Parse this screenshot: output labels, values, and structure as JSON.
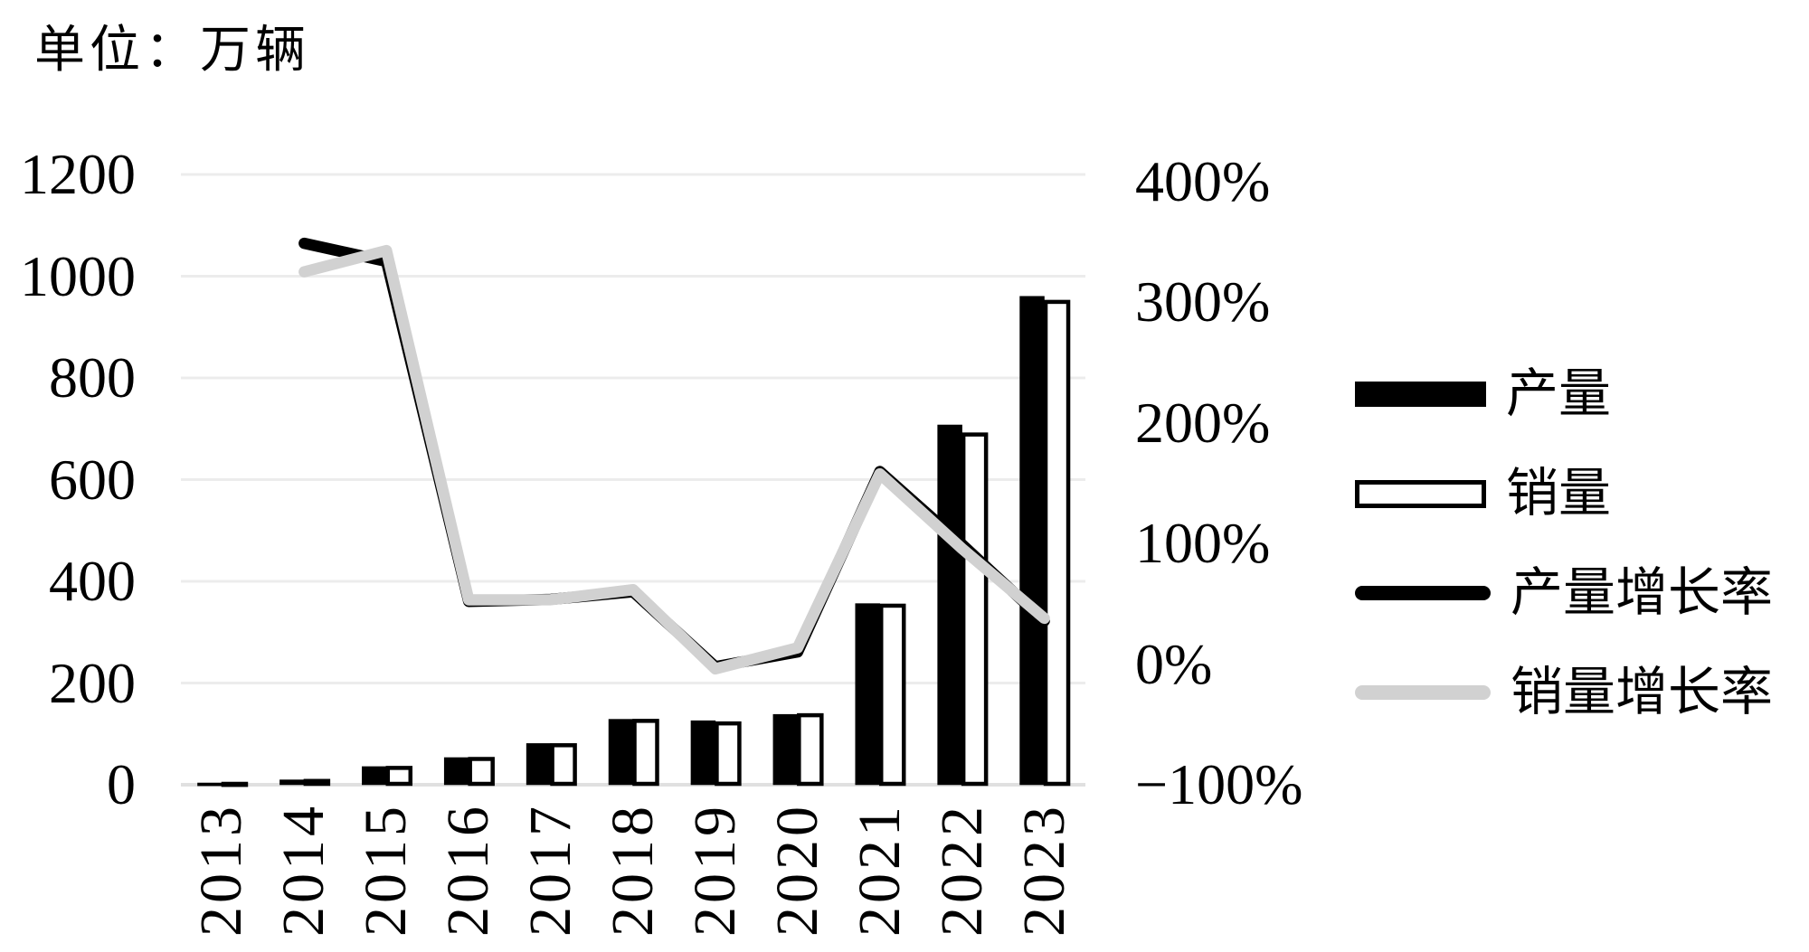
{
  "title": "单位：万辆",
  "legend": {
    "items": [
      {
        "label": "产量",
        "marker": "filled-bar-swatch"
      },
      {
        "label": "销量",
        "marker": "outlined-bar-swatch"
      },
      {
        "label": "产量增长率",
        "marker": "black-line-swatch"
      },
      {
        "label": "销量增长率",
        "marker": "gray-line-swatch"
      }
    ]
  },
  "colors": {
    "production_bar": "#000000",
    "sales_bar_fill": "#ffffff",
    "sales_bar_border": "#000000",
    "production_growth_line": "#000000",
    "sales_growth_line": "#d1d1d1",
    "gridline": "#ececec",
    "baseline": "#e0e0e0",
    "text": "#000000",
    "background": "#ffffff"
  },
  "chart_data": {
    "type": "combo-bar-line",
    "title": "单位：万辆",
    "categories": [
      "2013",
      "2014",
      "2015",
      "2016",
      "2017",
      "2018",
      "2019",
      "2020",
      "2021",
      "2022",
      "2023"
    ],
    "series": [
      {
        "name": "产量",
        "type": "bar",
        "axis": "left",
        "values": [
          1.8,
          7.9,
          34.0,
          51.7,
          79.4,
          127.0,
          124.2,
          136.6,
          354.5,
          705.8,
          958.7
        ]
      },
      {
        "name": "销量",
        "type": "bar",
        "axis": "left",
        "values": [
          1.8,
          7.5,
          33.1,
          50.7,
          77.7,
          125.6,
          120.6,
          136.7,
          352.1,
          688.7,
          949.5
        ]
      },
      {
        "name": "产量增长率",
        "type": "line",
        "axis": "right",
        "unit": "%",
        "values": [
          null,
          348.6,
          333.6,
          51.9,
          53.6,
          59.9,
          -2.2,
          10.0,
          159.5,
          99.1,
          35.8
        ]
      },
      {
        "name": "销量增长率",
        "type": "line",
        "axis": "right",
        "unit": "%",
        "values": [
          null,
          325.0,
          342.6,
          53.2,
          53.3,
          61.6,
          -4.0,
          13.4,
          157.6,
          95.6,
          37.9
        ]
      }
    ],
    "left_axis": {
      "range": [
        0,
        1200
      ],
      "ticks": [
        {
          "label": "1200",
          "value": 1200
        },
        {
          "label": "1000",
          "value": 1000
        },
        {
          "label": "800",
          "value": 800
        },
        {
          "label": "600",
          "value": 600
        },
        {
          "label": "400",
          "value": 400
        },
        {
          "label": "200",
          "value": 200
        },
        {
          "label": "0",
          "value": 0
        }
      ]
    },
    "right_axis": {
      "range_percent": [
        -100,
        400
      ],
      "ticks": [
        {
          "label": "400%",
          "value": 400
        },
        {
          "label": "300%",
          "value": 300
        },
        {
          "label": "200%",
          "value": 200
        },
        {
          "label": "100%",
          "value": 100
        },
        {
          "label": "0%",
          "value": 0
        },
        {
          "label": "−100%",
          "value": -100
        }
      ]
    },
    "grid": true,
    "legend_position": "right-middle"
  }
}
